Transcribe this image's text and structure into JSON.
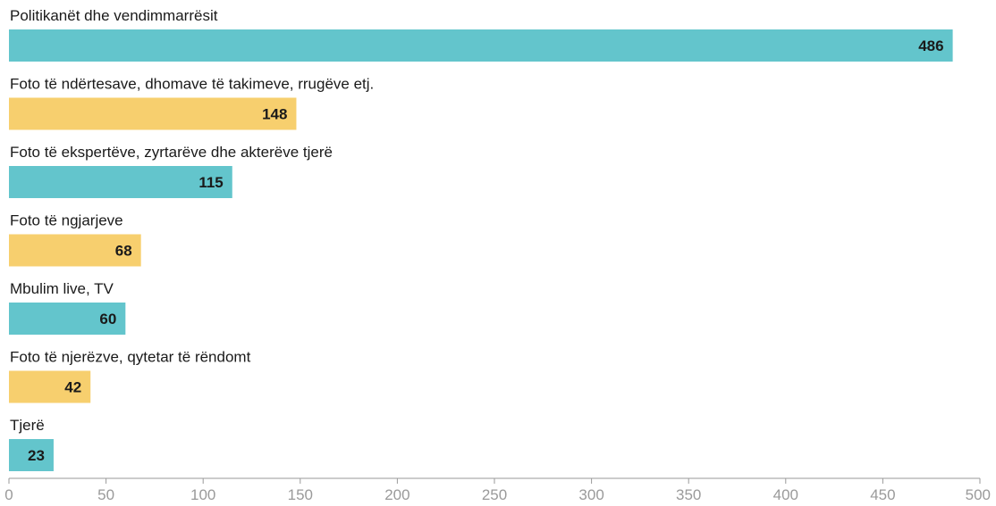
{
  "chart_data": {
    "type": "bar",
    "orientation": "horizontal",
    "categories": [
      "Politikanët dhe vendimmarrësit",
      "Foto të ndërtesave, dhomave të takimeve, rrugëve etj.",
      "Foto të ekspertëve, zyrtarëve dhe akterëve tjerë",
      "Foto të ngjarjeve",
      "Mbulim live, TV",
      "Foto të njerëzve, qytetar të rëndomt",
      "Tjerë"
    ],
    "values": [
      486,
      148,
      115,
      68,
      60,
      42,
      23
    ],
    "bar_colors": [
      "#63c5cc",
      "#f7cf6e",
      "#63c5cc",
      "#f7cf6e",
      "#63c5cc",
      "#f7cf6e",
      "#63c5cc"
    ],
    "xlim": [
      0,
      500
    ],
    "xticks": [
      0,
      50,
      100,
      150,
      200,
      250,
      300,
      350,
      400,
      450,
      500
    ],
    "title": "",
    "xlabel": "",
    "ylabel": "",
    "grid": false,
    "data_labels": "inside-end"
  }
}
